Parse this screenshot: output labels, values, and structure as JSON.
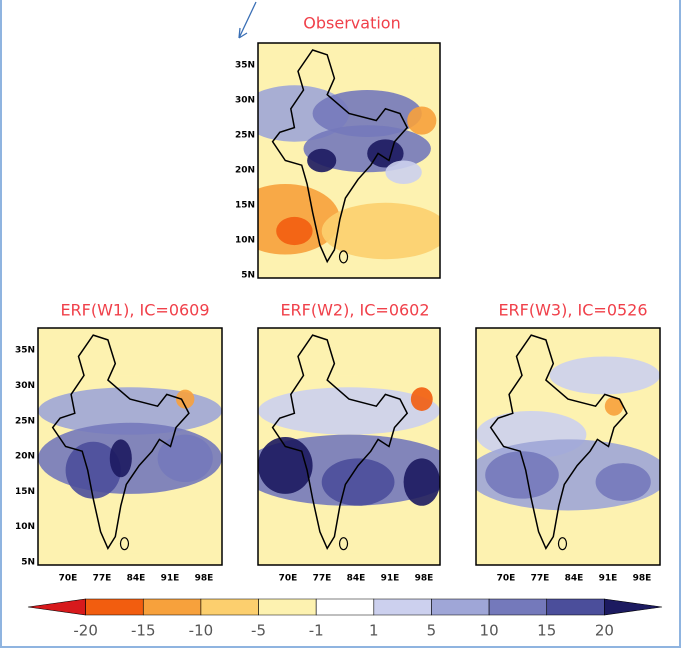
{
  "panels": [
    {
      "title": "Observation",
      "lat_labels": [
        "35N",
        "30N",
        "25N",
        "20N",
        "15N",
        "10N",
        "5N"
      ]
    },
    {
      "title": "ERF(W1), IC=0609",
      "lat_labels": [
        "35N",
        "30N",
        "25N",
        "20N",
        "15N",
        "10N",
        "5N"
      ],
      "lon_labels": [
        "70E",
        "77E",
        "84E",
        "91E",
        "98E"
      ]
    },
    {
      "title": "ERF(W2), IC=0602",
      "lon_labels": [
        "70E",
        "77E",
        "84E",
        "91E",
        "98E"
      ]
    },
    {
      "title": "ERF(W3), IC=0526",
      "lon_labels": [
        "70E",
        "77E",
        "84E",
        "91E",
        "98E"
      ]
    }
  ],
  "colorbar": {
    "labels": [
      "-20",
      "-15",
      "-10",
      "-5",
      "-1",
      "1",
      "5",
      "10",
      "15",
      "20"
    ],
    "colors": [
      "#d7191c",
      "#f25d0f",
      "#f7a13c",
      "#fccf6e",
      "#fdf2b0",
      "#ffffff",
      "#ccd0ee",
      "#9fa6d7",
      "#7479bb",
      "#4b4e9b",
      "#1c1a60"
    ]
  }
}
